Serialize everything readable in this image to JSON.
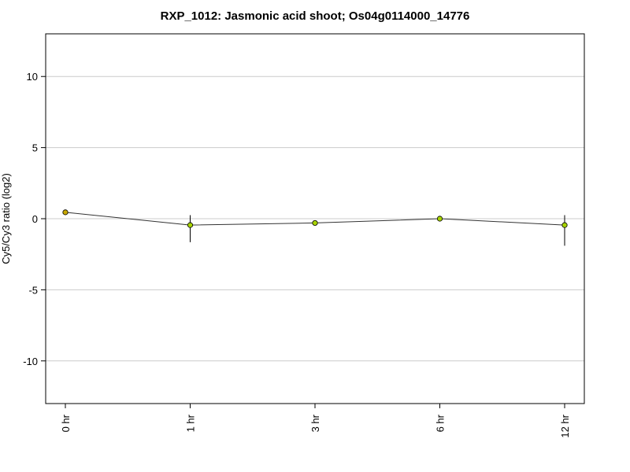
{
  "chart_data": {
    "type": "line",
    "title": "RXP_1012: Jasmonic acid shoot; Os04g0114000_14776",
    "xlabel": "",
    "ylabel": "Cy5/Cy3 ratio (log2)",
    "categories": [
      "0 hr",
      "1 hr",
      "3 hr",
      "6 hr",
      "12 hr"
    ],
    "series": [
      {
        "values": [
          0.45,
          -0.45,
          -0.3,
          0.0,
          -0.45
        ],
        "error_low": [
          0.45,
          -1.65,
          -0.3,
          -0.15,
          -1.9
        ],
        "error_high": [
          0.45,
          0.25,
          -0.3,
          0.15,
          0.25
        ]
      }
    ],
    "ylim": [
      -13,
      13
    ],
    "yticks": [
      -10,
      -5,
      0,
      5,
      10
    ],
    "grid": true,
    "colors": {
      "line": "#333333",
      "grid": "#cccccc",
      "marker_fill_0": "#c8a800",
      "marker_fill": "#a8d400",
      "marker_stroke": "#000000"
    }
  }
}
